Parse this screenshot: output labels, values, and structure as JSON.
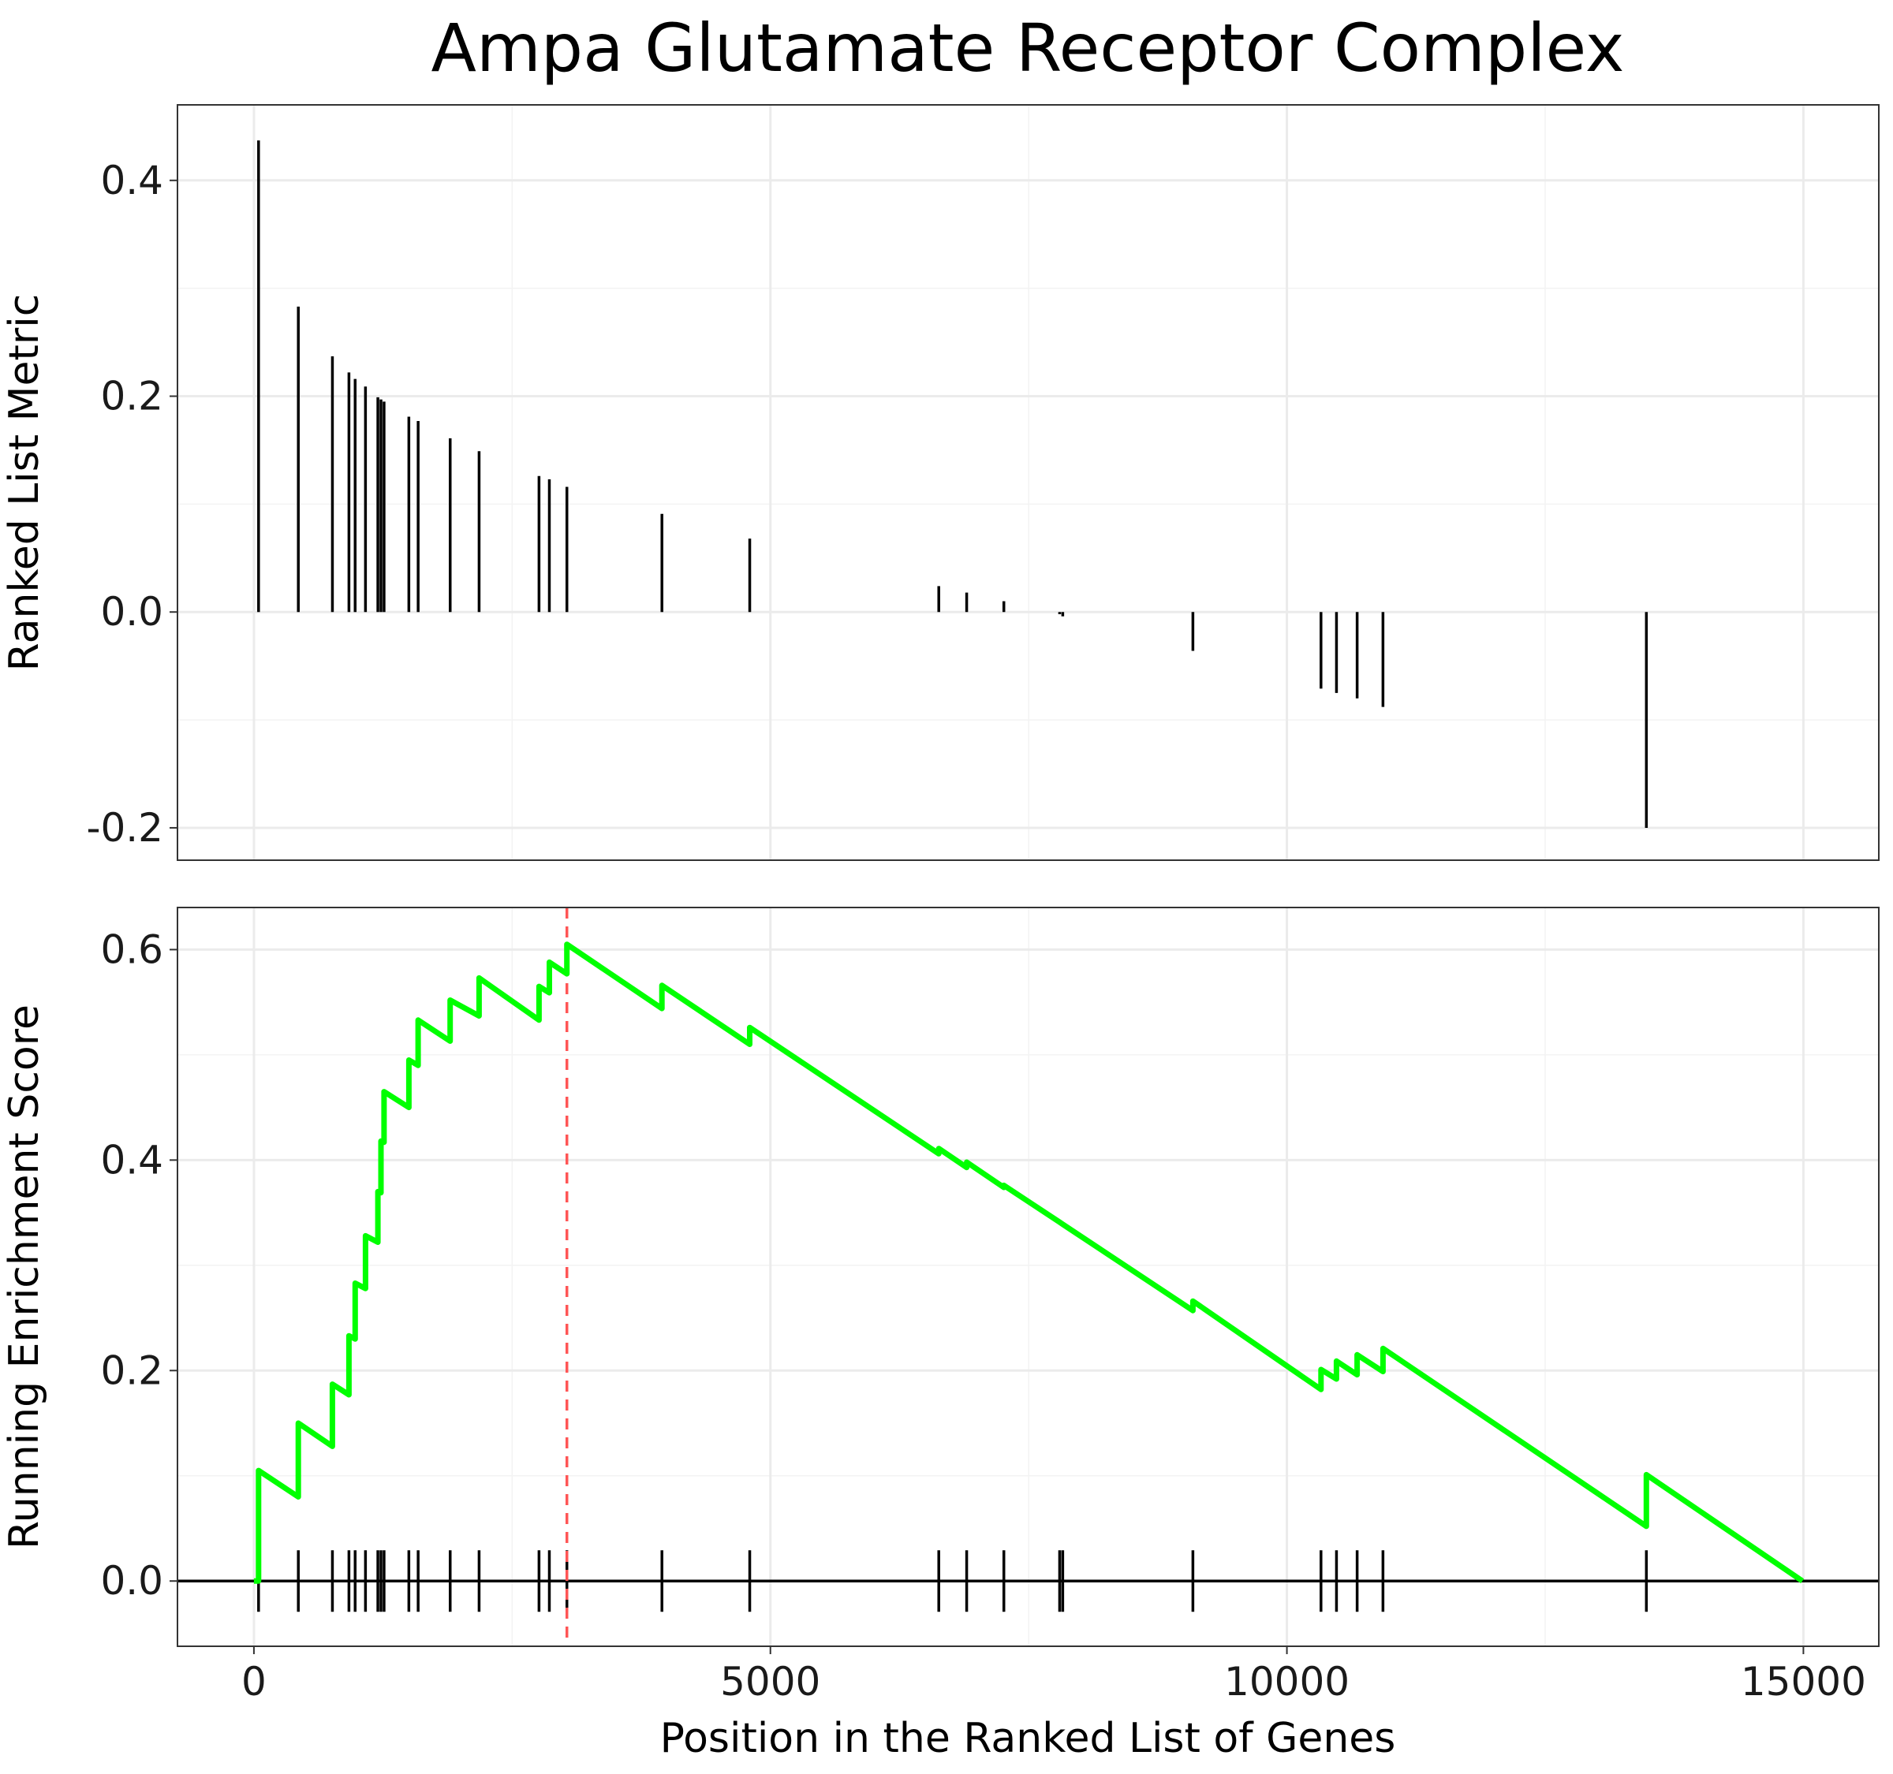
{
  "chart_data": {
    "title": "Ampa Glutamate Receptor Complex",
    "xlabel": "Position in the Ranked List of Genes",
    "xlim": [
      -740,
      15730
    ],
    "x_ticks": [
      0,
      5000,
      10000,
      15000
    ],
    "x_tick_labels": [
      "0",
      "5000",
      "10000",
      "15000"
    ],
    "grid": true,
    "gene_count": 15000,
    "max_es_position": 3030,
    "panels": [
      {
        "type": "bar",
        "ylabel": "Ranked List Metric",
        "ylim": [
          -0.23,
          0.47
        ],
        "y_ticks": [
          0.4,
          0.2,
          0.0,
          -0.2
        ],
        "y_tick_labels": [
          "0.4",
          "0.2",
          "0.0",
          "-0.2"
        ],
        "series": [
          {
            "x": [
              45,
              430,
              760,
              920,
              980,
              1080,
              1200,
              1230,
              1260,
              1500,
              1590,
              1900,
              2180,
              2760,
              2860,
              3030,
              3950,
              4800,
              6630,
              6900,
              7260,
              7800,
              7830,
              9090,
              10330,
              10480,
              10680,
              10930,
              13480
            ],
            "values": [
              0.437,
              0.283,
              0.237,
              0.222,
              0.216,
              0.209,
              0.199,
              0.197,
              0.195,
              0.181,
              0.177,
              0.161,
              0.149,
              0.126,
              0.123,
              0.116,
              0.091,
              0.068,
              0.024,
              0.018,
              0.01,
              -0.002,
              -0.004,
              -0.036,
              -0.071,
              -0.075,
              -0.08,
              -0.088,
              -0.2
            ]
          }
        ]
      },
      {
        "type": "line",
        "ylabel": "Running Enrichment Score",
        "ylim": [
          -0.062,
          0.64
        ],
        "y_ticks": [
          0.6,
          0.4,
          0.2,
          0.0
        ],
        "y_tick_labels": [
          "0.6",
          "0.4",
          "0.2",
          "0.0"
        ],
        "series": [
          {
            "color": "#00ff00",
            "x": [
              0,
              45,
              45,
              430,
              430,
              760,
              760,
              920,
              920,
              980,
              980,
              1080,
              1080,
              1200,
              1200,
              1230,
              1230,
              1260,
              1260,
              1500,
              1500,
              1590,
              1590,
              1900,
              1900,
              2180,
              2180,
              2760,
              2760,
              2860,
              2860,
              3030,
              3030,
              3950,
              3950,
              4800,
              4800,
              6630,
              6630,
              6900,
              6900,
              7260,
              7260,
              7800,
              7800,
              7830,
              7830,
              9090,
              9090,
              10330,
              10330,
              10480,
              10480,
              10680,
              10680,
              10930,
              10930,
              13480,
              13480,
              14990
            ],
            "values": [
              0,
              0.0,
              0.105,
              0.08,
              0.15,
              0.128,
              0.187,
              0.177,
              0.233,
              0.23,
              0.283,
              0.278,
              0.328,
              0.322,
              0.37,
              0.369,
              0.418,
              0.417,
              0.465,
              0.45,
              0.495,
              0.49,
              0.533,
              0.513,
              0.552,
              0.537,
              0.573,
              0.533,
              0.565,
              0.559,
              0.588,
              0.577,
              0.605,
              0.544,
              0.566,
              0.51,
              0.526,
              0.406,
              0.411,
              0.393,
              0.398,
              0.374,
              0.376,
              0.341,
              0.341,
              0.339,
              0.339,
              0.257,
              0.266,
              0.182,
              0.201,
              0.192,
              0.209,
              0.196,
              0.215,
              0.199,
              0.221,
              0.052,
              0.101,
              0.0
            ]
          }
        ],
        "hits": [
          45,
          430,
          760,
          920,
          980,
          1080,
          1200,
          1230,
          1260,
          1500,
          1590,
          1900,
          2180,
          2760,
          2860,
          3030,
          3950,
          4800,
          6630,
          6900,
          7260,
          7800,
          7830,
          9090,
          10330,
          10480,
          10680,
          10930,
          13480
        ]
      }
    ]
  }
}
